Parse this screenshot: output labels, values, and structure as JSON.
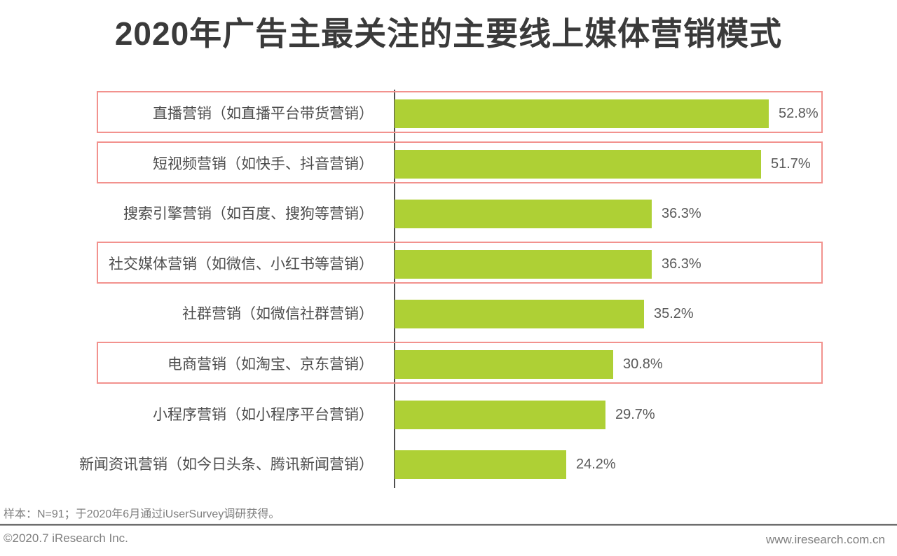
{
  "title": "2020年广告主最关注的主要线上媒体营销模式",
  "chart_data": {
    "type": "bar",
    "orientation": "horizontal",
    "title": "2020年广告主最关注的主要线上媒体营销模式",
    "categories": [
      "直播营销（如直播平台带货营销）",
      "短视频营销（如快手、抖音营销）",
      "搜索引擎营销（如百度、搜狗等营销）",
      "社交媒体营销（如微信、小红书等营销）",
      "社群营销（如微信社群营销）",
      "电商营销（如淘宝、京东营销）",
      "小程序营销（如小程序平台营销）",
      "新闻资讯营销（如今日头条、腾讯新闻营销）"
    ],
    "values": [
      52.8,
      51.7,
      36.3,
      36.3,
      35.2,
      30.8,
      29.7,
      24.2
    ],
    "value_labels": [
      "52.8%",
      "51.7%",
      "36.3%",
      "36.3%",
      "35.2%",
      "30.8%",
      "29.7%",
      "24.2%"
    ],
    "unit": "%",
    "xlim": [
      0,
      60
    ],
    "grid": false,
    "legend": false,
    "highlighted_rows": [
      0,
      1,
      3,
      5
    ],
    "bar_color": "#aed035",
    "highlight_border_color": "#f2928e",
    "axis_color": "#4f4f4f"
  },
  "footer": {
    "note": "样本：N=91；于2020年6月通过iUserSurvey调研获得。",
    "copyright": "©2020.7 iResearch Inc.",
    "website": "www.iresearch.com.cn"
  }
}
